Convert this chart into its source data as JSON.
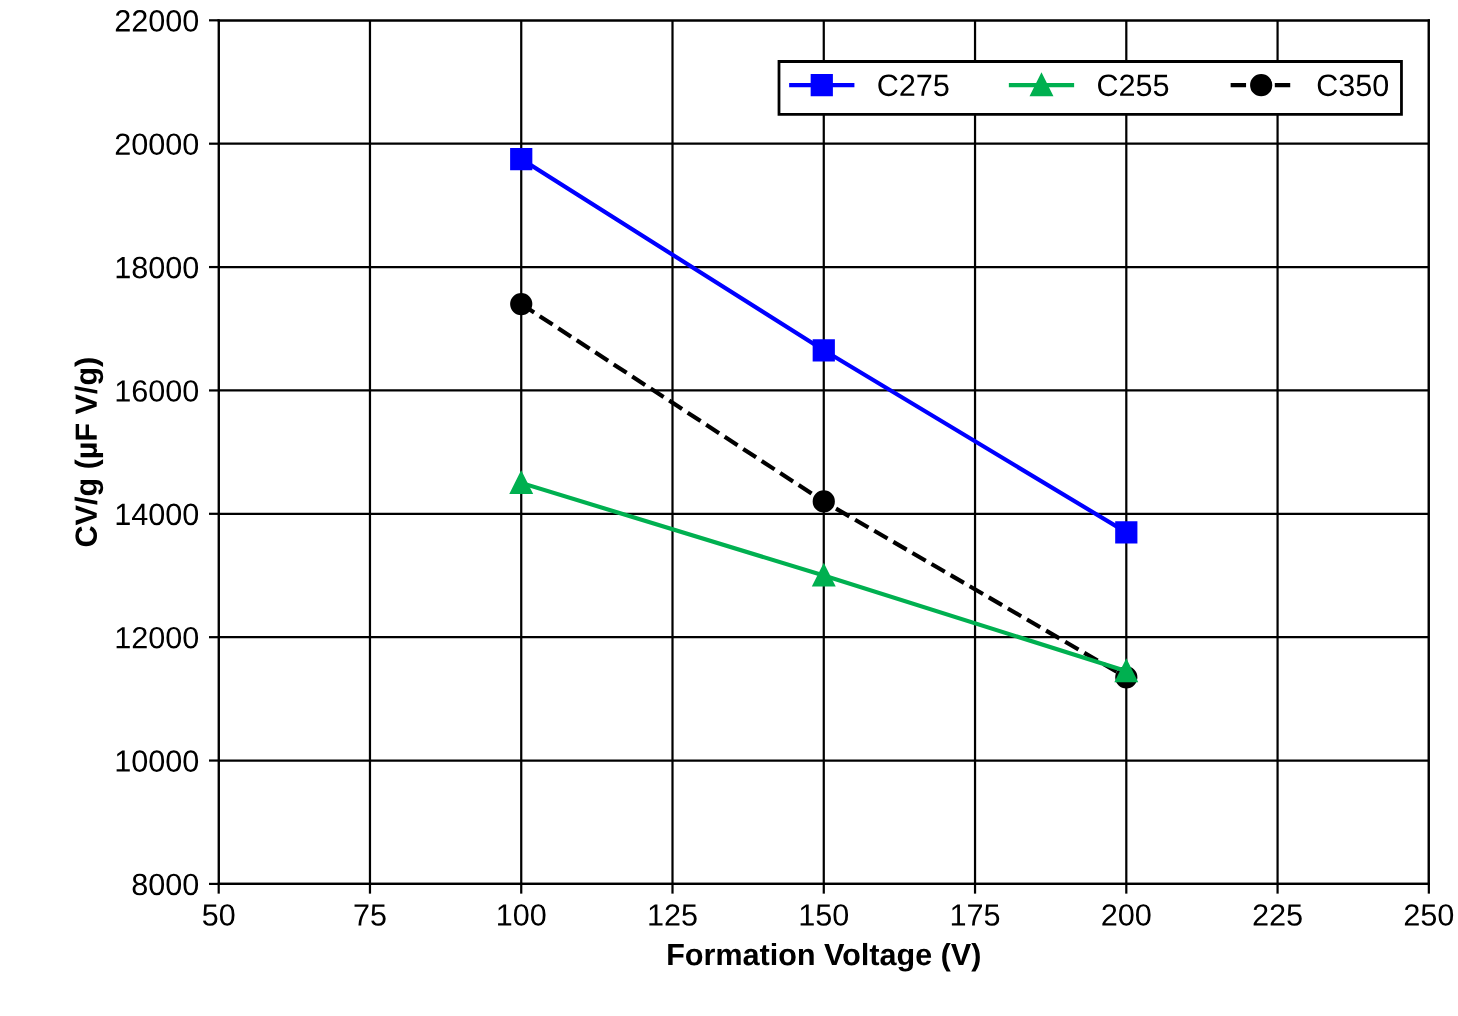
{
  "chart_data": {
    "type": "line",
    "xlabel": "Formation Voltage (V)",
    "ylabel": "CV/g (µF V/g)",
    "x": [
      100,
      150,
      200
    ],
    "series": [
      {
        "name": "C275",
        "color": "#0000ff",
        "values": [
          19750,
          16650,
          13700
        ],
        "marker": "square",
        "line_style": "solid"
      },
      {
        "name": "C255",
        "color": "#00b050",
        "values": [
          14500,
          13000,
          11450
        ],
        "marker": "triangle",
        "line_style": "solid"
      },
      {
        "name": "C350",
        "color": "#000000",
        "values": [
          17400,
          14200,
          11350
        ],
        "marker": "circle",
        "line_style": "dashed"
      }
    ],
    "xlim": [
      50,
      250
    ],
    "xticks": [
      50,
      75,
      100,
      125,
      150,
      175,
      200,
      225,
      250
    ],
    "ylim": [
      8000,
      22000
    ],
    "yticks": [
      8000,
      10000,
      12000,
      14000,
      16000,
      18000,
      20000,
      22000
    ],
    "grid": true,
    "legend": "top right"
  }
}
